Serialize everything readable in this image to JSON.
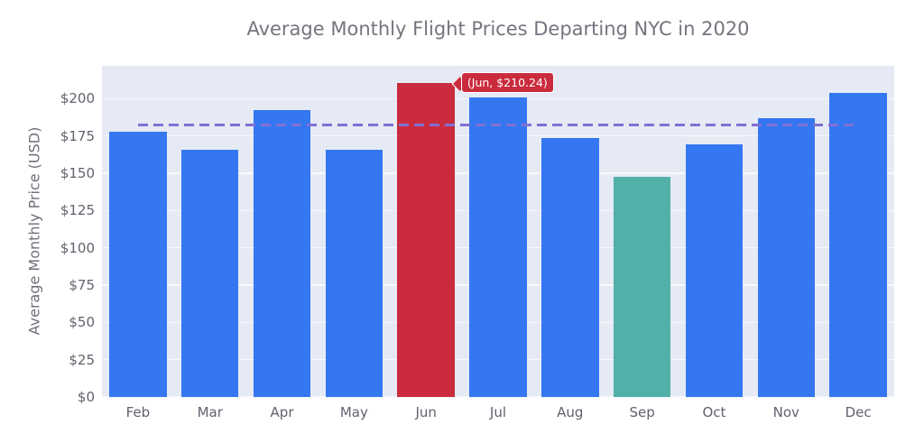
{
  "chart_data": {
    "type": "bar",
    "title": "Average Monthly Flight Prices Departing NYC in 2020",
    "xlabel": "",
    "ylabel": "Average Monthly Price (USD)",
    "categories": [
      "Feb",
      "Mar",
      "Apr",
      "May",
      "Jun",
      "Jul",
      "Aug",
      "Sep",
      "Oct",
      "Nov",
      "Dec"
    ],
    "values": [
      178,
      166,
      192.5,
      166,
      210.24,
      201,
      173.5,
      147.5,
      169.5,
      187,
      204
    ],
    "bar_colors": [
      "#3577f1",
      "#3577f1",
      "#3577f1",
      "#3577f1",
      "#ca2c3e",
      "#3577f1",
      "#3577f1",
      "#53b0a9",
      "#3577f1",
      "#3577f1",
      "#3577f1"
    ],
    "yticks": {
      "values": [
        0,
        25,
        50,
        75,
        100,
        125,
        150,
        175,
        200
      ],
      "labels": [
        "$0",
        "$25",
        "$50",
        "$75",
        "$100",
        "$125",
        "$150",
        "$175",
        "$200"
      ]
    },
    "ylim": [
      0,
      222
    ],
    "grid": true,
    "plot_bg": "#e5eaf4",
    "grid_color": "#f7f9fc",
    "avg_line": {
      "value": 182.5,
      "color": "#8170d3",
      "style": "dashed",
      "from_category": "Feb",
      "to_category": "Dec"
    },
    "annotation": {
      "text": "(Jun, $210.24)",
      "target_category": "Jun",
      "bg": "#ca2c3e",
      "border_color": "#ffffff",
      "text_color": "#ffffff"
    },
    "legend": null
  }
}
